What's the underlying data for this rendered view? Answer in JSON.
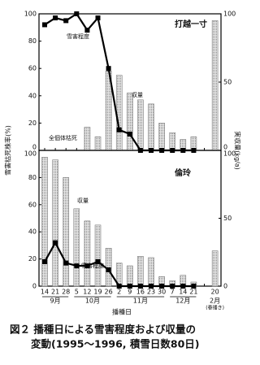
{
  "figure": {
    "ylabel": "雪害枯死株率(%)",
    "y2label": "実収量(kg/a)",
    "xlabel": "播種日",
    "caption": [
      "図２ 播種日による雪害程度および収量の",
      "変動(1995〜1996, 積雪日数80日)"
    ]
  },
  "chart_data": [
    {
      "type": "bar_line",
      "title": "打越一寸",
      "annotations": [
        "全個体枯死"
      ],
      "ylim": [
        0,
        100
      ],
      "yticks": [
        0,
        20,
        40,
        60,
        80,
        100
      ],
      "y2lim": [
        0,
        100
      ],
      "y2ticks": [
        0,
        50,
        100
      ],
      "series": [
        {
          "name": "雪害程度",
          "color": "#000000",
          "values": [
            92,
            97,
            95,
            100,
            88,
            97,
            60,
            15,
            12,
            0,
            0,
            0,
            0,
            0,
            0,
            null,
            null
          ]
        },
        {
          "name": "収量",
          "axis": "y2",
          "color": "#bdbdbd",
          "values": [
            0,
            0,
            0,
            0,
            17,
            10,
            58,
            55,
            42,
            37,
            34,
            20,
            13,
            8,
            10,
            null,
            95
          ]
        }
      ]
    },
    {
      "type": "bar_line",
      "title": "倫玲",
      "categories": [
        "14",
        "21",
        "28",
        "5",
        "12",
        "19",
        "26",
        "2",
        "9",
        "16",
        "23",
        "30",
        "7",
        "14",
        "21",
        null,
        "20"
      ],
      "groups": [
        {
          "label": "9月",
          "start": 0,
          "end": 2
        },
        {
          "label": "10月",
          "start": 3,
          "end": 6
        },
        {
          "label": "11月",
          "start": 7,
          "end": 11
        },
        {
          "label": "12月",
          "start": 12,
          "end": 14
        },
        {
          "label": "2月",
          "note": "(春播き)",
          "start": 16,
          "end": 16
        }
      ],
      "ylim": [
        0,
        100
      ],
      "yticks": [
        0,
        20,
        40,
        60,
        80,
        100
      ],
      "y2lim": [
        0,
        100
      ],
      "y2ticks": [
        0,
        50,
        100
      ],
      "series": [
        {
          "name": "雪害程度",
          "color": "#000000",
          "values": [
            18,
            32,
            17,
            15,
            15,
            18,
            12,
            0,
            0,
            0,
            0,
            0,
            0,
            0,
            0,
            null,
            null
          ]
        },
        {
          "name": "収量",
          "axis": "y2",
          "color": "#bdbdbd",
          "values": [
            95,
            93,
            80,
            57,
            48,
            45,
            28,
            17,
            15,
            22,
            21,
            7,
            4,
            8,
            3,
            null,
            26
          ]
        }
      ]
    }
  ]
}
